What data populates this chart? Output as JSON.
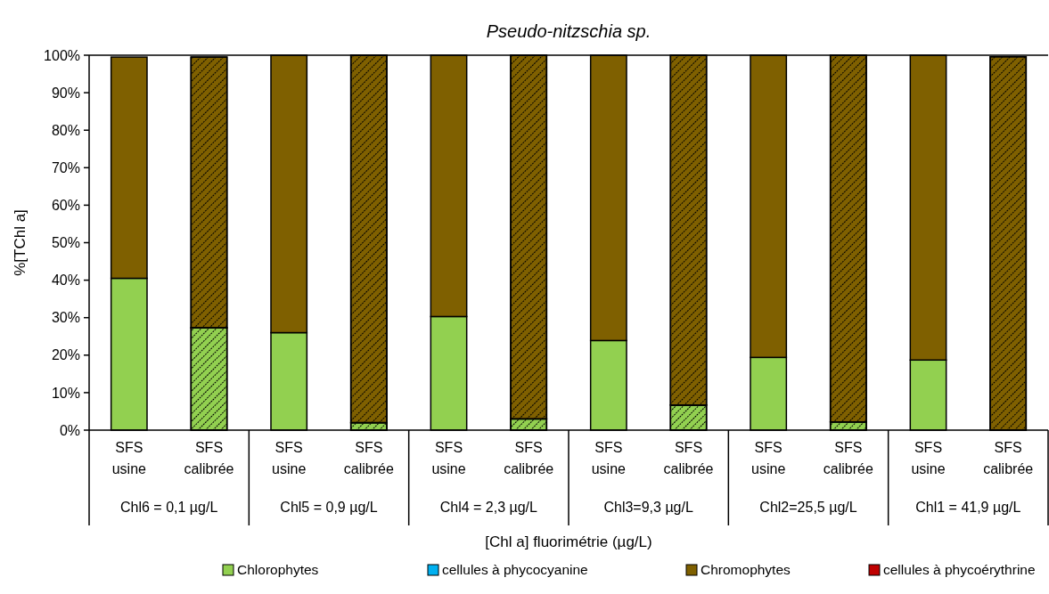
{
  "chart_data": {
    "type": "bar",
    "stacked": true,
    "title": "Pseudo-nitzschia sp.",
    "xlabel": "[Chl a] fluorimétrie (µg/L)",
    "ylabel": "%[TChl a]",
    "categories": [
      "SFS usine",
      "SFS calibrée",
      "SFS usine",
      "SFS calibrée",
      "SFS usine",
      "SFS calibrée",
      "SFS usine",
      "SFS calibrée",
      "SFS usine",
      "SFS calibrée",
      "SFS usine",
      "SFS calibrée"
    ],
    "annotations": [
      "Chl6 = 0,1 µg/L",
      "Chl5 = 0,9 µg/L",
      "Chl4 = 2,3 µg/L",
      "Chl3=9,3 µg/L",
      "Chl2=25,5 µg/L",
      "Chl1 = 41,9 µg/L"
    ],
    "series": [
      {
        "name": "Chlorophytes",
        "color": "#92d050",
        "values": [
          40.5,
          27.3,
          26,
          2,
          30.3,
          3,
          23.9,
          6.7,
          19.4,
          2.2,
          18.7,
          null
        ]
      },
      {
        "name": "cellules à phycocyanine",
        "color": "#00b0f0",
        "values": [
          0,
          0,
          0,
          0,
          0,
          0,
          0,
          0,
          0,
          0,
          0,
          0
        ]
      },
      {
        "name": "Chromophytes",
        "color": "#7f6000",
        "values": [
          59,
          72.2,
          74,
          98,
          69.7,
          97,
          76.1,
          93.3,
          80.6,
          97.8,
          81.3,
          99.6
        ]
      },
      {
        "name": "cellules à phycoérythrine",
        "color": "#c00000",
        "values": [
          0,
          0,
          0,
          0,
          0,
          0,
          0,
          0,
          0,
          0,
          0,
          0
        ]
      }
    ],
    "ylim": [
      0,
      100
    ],
    "yticks": [
      {
        "value": 0,
        "label": "0%"
      },
      {
        "value": 10,
        "label": "10%"
      },
      {
        "value": 20,
        "label": "20%"
      },
      {
        "value": 30,
        "label": "30%"
      },
      {
        "value": 40,
        "label": "40%"
      },
      {
        "value": 50,
        "label": "50%"
      },
      {
        "value": 60,
        "label": "60%"
      },
      {
        "value": 70,
        "label": "70%"
      },
      {
        "value": 80,
        "label": "80%"
      },
      {
        "value": 90,
        "label": "90%"
      },
      {
        "value": 100,
        "label": "100%"
      }
    ],
    "legend": "bottom"
  }
}
